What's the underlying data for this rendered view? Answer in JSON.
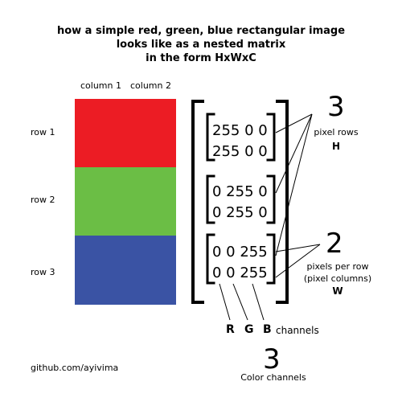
{
  "title": {
    "line1": "how a simple red, green, blue rectangular image",
    "line2": "looks like as a nested matrix",
    "line3": "in the form HxWxC"
  },
  "columns": [
    "column 1",
    "column 2"
  ],
  "rows": [
    "row 1",
    "row 2",
    "row 3"
  ],
  "colors": {
    "red": "#ec1c24",
    "green": "#6bbe45",
    "blue": "#3a53a4"
  },
  "matrix": [
    [
      "255 0 0",
      "255 0 0"
    ],
    [
      "0 255 0",
      "0 255 0"
    ],
    [
      "0 0 255",
      "0 0 255"
    ]
  ],
  "height": {
    "value": "3",
    "label": "pixel rows",
    "letter": "H"
  },
  "width": {
    "value": "2",
    "label1": "pixels per row",
    "label2": "(pixel columns)",
    "letter": "W"
  },
  "channels": {
    "r": "R",
    "g": "G",
    "b": "B",
    "label": "channels",
    "value": "3",
    "caption": "Color channels"
  },
  "footer": "github.com/ayivima"
}
